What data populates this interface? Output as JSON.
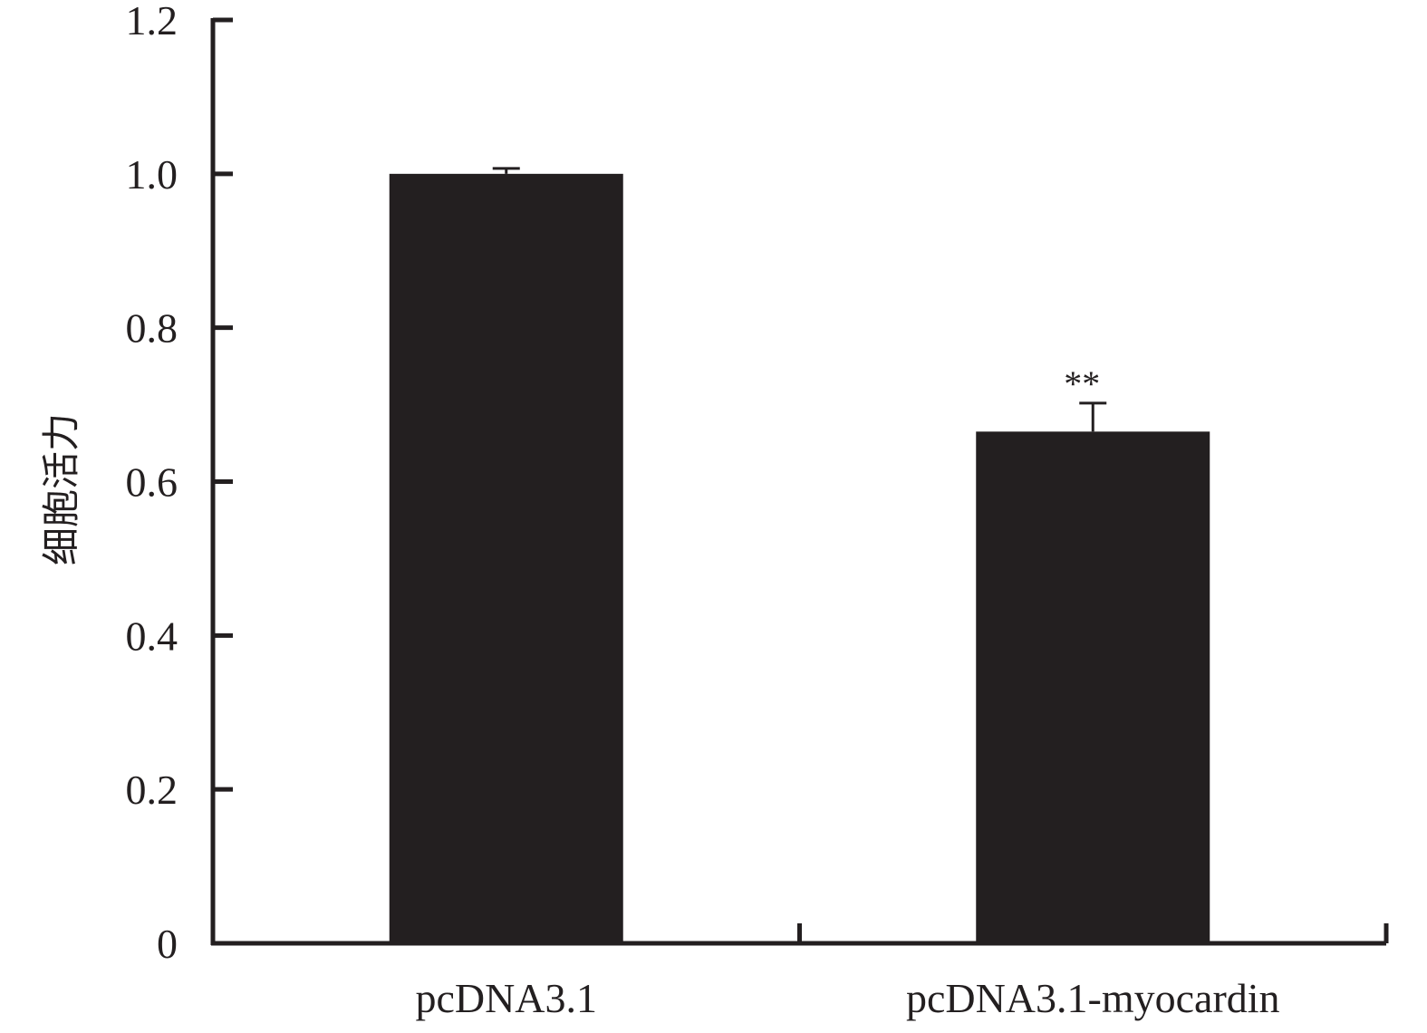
{
  "chart_data": {
    "type": "bar",
    "title": "",
    "xlabel": "",
    "ylabel": "细胞活力",
    "ylim": [
      0,
      1.2
    ],
    "yticks": [
      "0",
      "0.2",
      "0.4",
      "0.6",
      "0.8",
      "1.0",
      "1.2"
    ],
    "categories": [
      "pcDNA3.1",
      "pcDNA3.1-myocardin"
    ],
    "values": [
      1.0,
      0.665
    ],
    "errors": [
      0.007,
      0.037
    ],
    "annotations": [
      "",
      "**"
    ],
    "grid": false,
    "colors": {
      "bar": "#231f20",
      "axis": "#231f20"
    }
  }
}
